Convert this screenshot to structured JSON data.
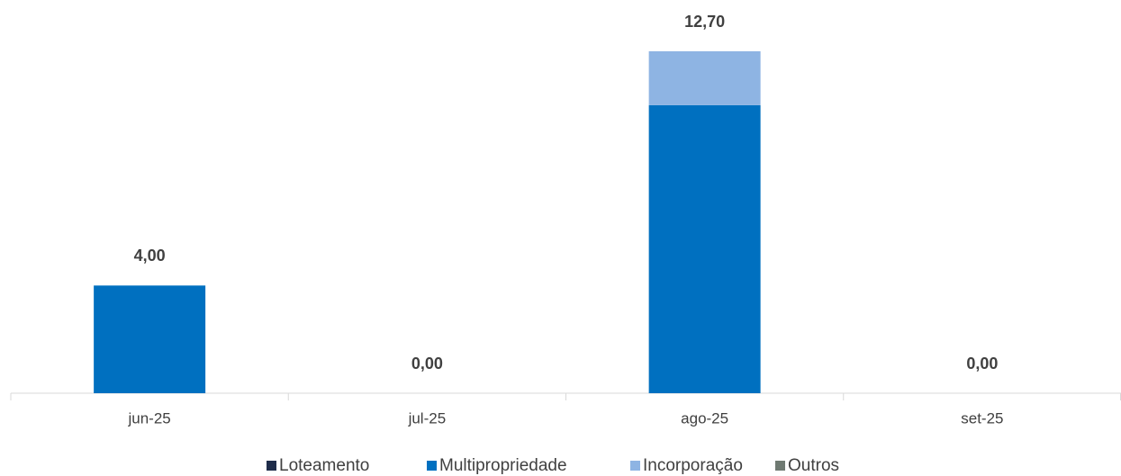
{
  "chart_data": {
    "type": "stacked-bar",
    "categories": [
      "jun-25",
      "jul-25",
      "ago-25",
      "set-25"
    ],
    "series": [
      {
        "name": "Loteamento",
        "color": "#1f2d4a",
        "values": [
          0,
          0,
          0,
          0
        ]
      },
      {
        "name": "Multipropriedade",
        "color": "#0070c0",
        "values": [
          4,
          0,
          10.7,
          0
        ]
      },
      {
        "name": "Incorporação",
        "color": "#8eb4e3",
        "values": [
          0,
          0,
          2,
          0
        ]
      },
      {
        "name": "Outros",
        "color": "#6f7a72",
        "values": [
          0,
          0,
          0,
          0
        ]
      }
    ],
    "totals": {
      "values": [
        4,
        0,
        12.7,
        0
      ],
      "value_labels": [
        "4,00",
        "0,00",
        "12,70",
        "0,00"
      ]
    },
    "legend": "bottom"
  }
}
